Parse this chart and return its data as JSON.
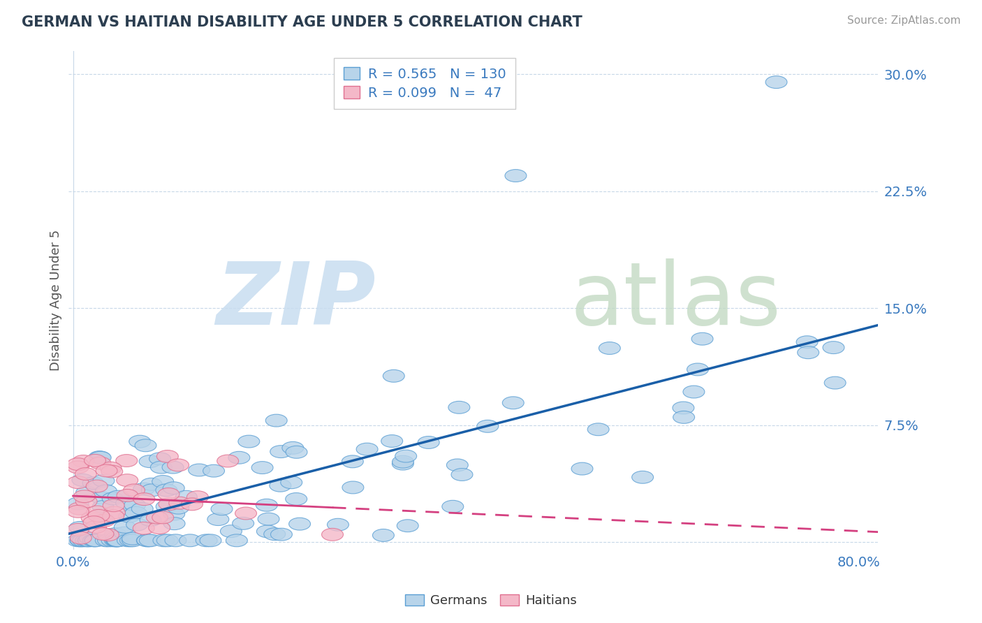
{
  "title": "GERMAN VS HAITIAN DISABILITY AGE UNDER 5 CORRELATION CHART",
  "source": "Source: ZipAtlas.com",
  "ylabel": "Disability Age Under 5",
  "xlim": [
    0.0,
    0.8
  ],
  "ylim": [
    0.0,
    0.3
  ],
  "yticks": [
    0.0,
    0.075,
    0.15,
    0.225,
    0.3
  ],
  "ytick_labels": [
    "",
    "7.5%",
    "15.0%",
    "22.5%",
    "30.0%"
  ],
  "german_R": 0.565,
  "german_N": 130,
  "haitian_R": 0.099,
  "haitian_N": 47,
  "blue_face": "#b8d4ea",
  "blue_edge": "#5b9fd4",
  "pink_face": "#f4b8c8",
  "pink_edge": "#e07090",
  "reg_blue": "#1a5fa8",
  "reg_pink": "#d44080",
  "watermark_zip_color": "#c8ddf0",
  "watermark_atlas_color": "#c0d8c0"
}
